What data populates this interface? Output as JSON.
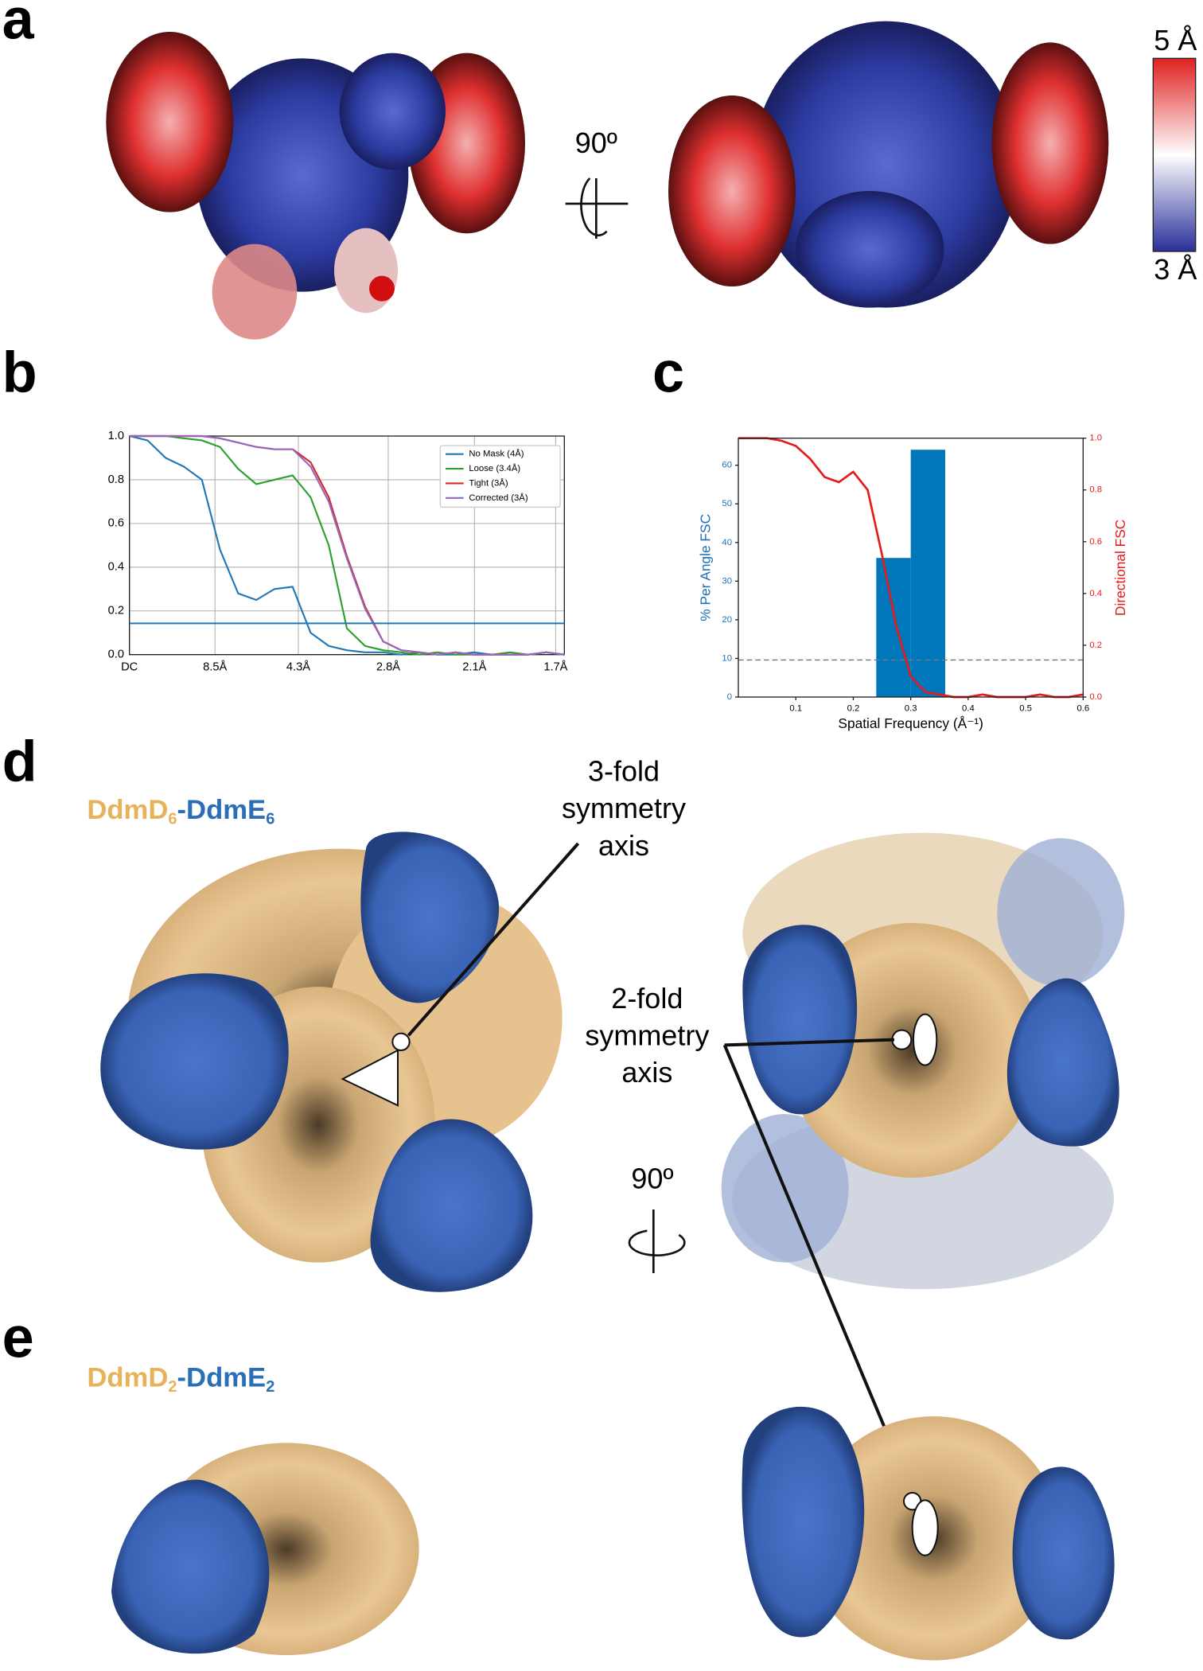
{
  "panels": {
    "a": "a",
    "b": "b",
    "c": "c",
    "d": "d",
    "e": "e"
  },
  "rotation_labels": [
    "90º",
    "90º"
  ],
  "colorbar": {
    "max_label": "5 Å",
    "min_label": "3 Å"
  },
  "annotations": {
    "three_fold": [
      "3-fold",
      "symmetry",
      "axis"
    ],
    "two_fold": [
      "2-fold",
      "symmetry",
      "axis"
    ]
  },
  "complex_labels": {
    "d": [
      "DdmD",
      "6",
      "-",
      "DdmE",
      "6"
    ],
    "e": [
      "DdmD",
      "2",
      "-",
      "DdmE",
      "2"
    ]
  },
  "chart_data": [
    {
      "type": "line",
      "x": [
        0,
        0.025,
        0.05,
        0.075,
        0.1,
        0.125,
        0.15,
        0.175,
        0.2,
        0.225,
        0.25,
        0.275,
        0.3,
        0.325,
        0.35,
        0.375,
        0.4,
        0.425,
        0.45,
        0.475,
        0.5,
        0.525,
        0.55,
        0.575,
        0.6
      ],
      "series": [
        {
          "name": "No Mask (4Å)",
          "color": "#1f77b4",
          "values": [
            1.0,
            0.98,
            0.9,
            0.86,
            0.8,
            0.48,
            0.28,
            0.25,
            0.3,
            0.31,
            0.1,
            0.04,
            0.02,
            0.01,
            0.01,
            0,
            0.01,
            0,
            0,
            0.01,
            0,
            0,
            0,
            0.01,
            0
          ]
        },
        {
          "name": "Loose (3.4Å)",
          "color": "#2ca02c",
          "values": [
            1.0,
            1.0,
            1.0,
            0.99,
            0.98,
            0.95,
            0.85,
            0.78,
            0.8,
            0.82,
            0.72,
            0.5,
            0.12,
            0.04,
            0.02,
            0.01,
            0,
            0.01,
            0,
            0,
            0,
            0.01,
            0,
            0.01,
            0
          ]
        },
        {
          "name": "Tight (3Å)",
          "color": "#d62728",
          "values": [
            1.0,
            1.0,
            1.0,
            1.0,
            1.0,
            0.99,
            0.97,
            0.95,
            0.94,
            0.94,
            0.88,
            0.72,
            0.45,
            0.22,
            0.06,
            0.02,
            0.01,
            0,
            0.01,
            0,
            0,
            0,
            0,
            0.01,
            0
          ]
        },
        {
          "name": "Corrected (3Å)",
          "color": "#9467bd",
          "values": [
            1.0,
            1.0,
            1.0,
            1.0,
            1.0,
            0.99,
            0.97,
            0.95,
            0.94,
            0.94,
            0.86,
            0.7,
            0.44,
            0.21,
            0.06,
            0.02,
            0.01,
            0,
            0.01,
            0,
            0,
            0,
            0,
            0.01,
            0
          ]
        }
      ],
      "threshold": {
        "value": 0.143,
        "color": "#1f77b4"
      },
      "xlim": [
        0,
        0.6
      ],
      "xticks": [
        {
          "value": 0,
          "label": "DC"
        },
        {
          "value": 0.118,
          "label": "8.5Å"
        },
        {
          "value": 0.233,
          "label": "4.3Å"
        },
        {
          "value": 0.357,
          "label": "2.8Å"
        },
        {
          "value": 0.476,
          "label": "2.1Å"
        },
        {
          "value": 0.588,
          "label": "1.7Å"
        }
      ],
      "ylim": [
        0,
        1
      ],
      "yticks": [
        {
          "value": 0,
          "label": "0.0"
        },
        0.2,
        0.4,
        0.6,
        0.8,
        {
          "value": 1,
          "label": "1.0"
        }
      ],
      "grid": true,
      "legend": "upper right"
    },
    {
      "type": "histogram",
      "bins": [
        0.24,
        0.3,
        0.36
      ],
      "counts": [
        36,
        64
      ],
      "color": "#0077bb",
      "series": [
        {
          "color": "#e41a1c",
          "axis": "y2",
          "x": [
            0,
            0.025,
            0.05,
            0.075,
            0.1,
            0.125,
            0.15,
            0.175,
            0.2,
            0.225,
            0.25,
            0.275,
            0.3,
            0.325,
            0.35,
            0.375,
            0.4,
            0.425,
            0.45,
            0.475,
            0.5,
            0.525,
            0.55,
            0.575,
            0.6
          ],
          "values": [
            1.0,
            1.0,
            1.0,
            0.99,
            0.97,
            0.92,
            0.85,
            0.83,
            0.87,
            0.8,
            0.55,
            0.27,
            0.08,
            0.02,
            0.01,
            0,
            0,
            0.01,
            0,
            0,
            0,
            0.01,
            0,
            0,
            0.01
          ]
        }
      ],
      "threshold": {
        "value": 0.143,
        "axis": "y2",
        "color": "#777777",
        "style": "dashed"
      },
      "xlabel": "Spatial Frequency (Å⁻¹)",
      "ylabel": "% Per Angle FSC",
      "y2label": "Directional FSC",
      "ylabel_color": "#1f6fb4",
      "y2label_color": "#e41a1c",
      "xlim": [
        0,
        0.6
      ],
      "xticks": [
        0.1,
        0.2,
        0.3,
        0.4,
        0.5,
        0.6
      ],
      "ylim": [
        0,
        67
      ],
      "yticks": [
        0,
        10,
        20,
        30,
        40,
        50,
        60
      ],
      "y2lim": [
        0,
        1
      ],
      "y2ticks": [
        {
          "value": 0,
          "label": "0.0"
        },
        0.2,
        0.4,
        0.6,
        0.8,
        {
          "value": 1,
          "label": "1.0"
        }
      ]
    }
  ]
}
